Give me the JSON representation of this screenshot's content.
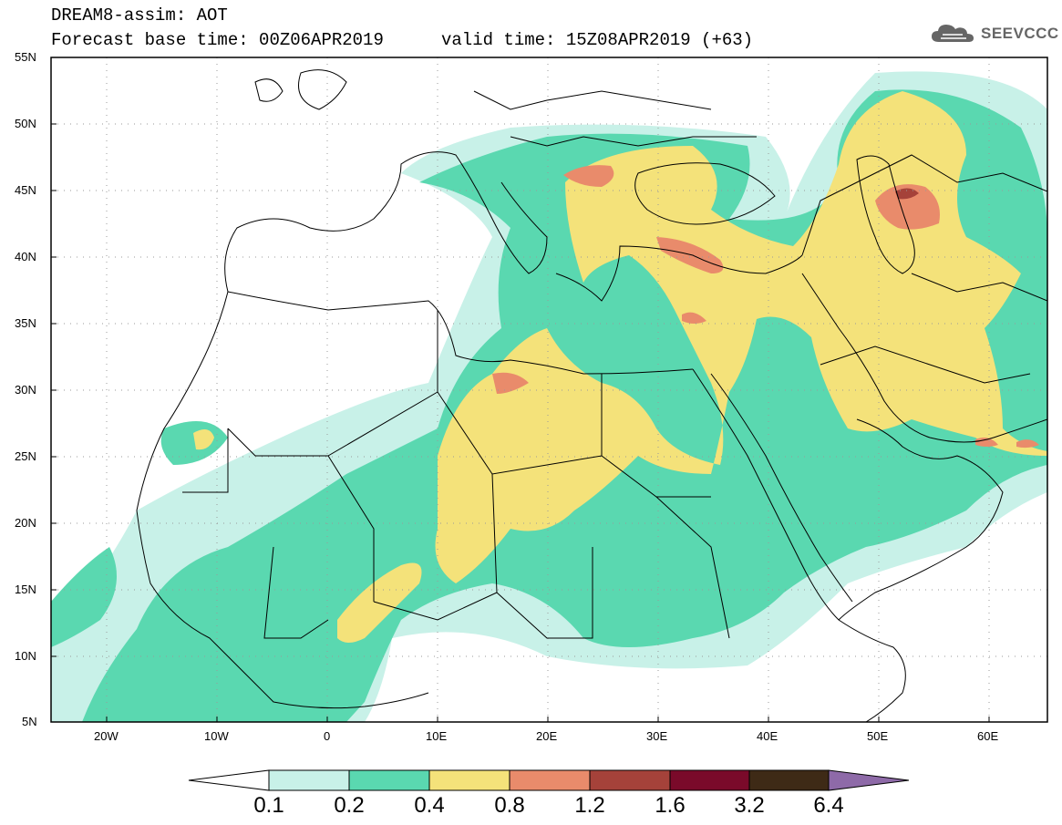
{
  "title": {
    "line1": "DREAM8-assim: AOT",
    "line2": "Forecast base time: 00Z06APR2019",
    "valid": "valid time: 15Z08APR2019 (+63)"
  },
  "logo": {
    "text": "SEEVCCC",
    "icon": "cloud-icon"
  },
  "axes": {
    "lat_labels": [
      "55N",
      "50N",
      "45N",
      "40N",
      "35N",
      "30N",
      "25N",
      "20N",
      "15N",
      "10N",
      "5N"
    ],
    "lon_labels": [
      "20W",
      "10W",
      "0",
      "10E",
      "20E",
      "30E",
      "40E",
      "50E",
      "60E"
    ],
    "lat_range": [
      5,
      55
    ],
    "lon_range": [
      -25,
      65
    ]
  },
  "colorbar": {
    "levels": [
      "0.1",
      "0.2",
      "0.4",
      "0.8",
      "1.2",
      "1.6",
      "3.2",
      "6.4"
    ],
    "colors": [
      "#ffffff",
      "#c8f1e8",
      "#5ad8b0",
      "#f4e27a",
      "#e98b6b",
      "#a5423a",
      "#7a0a2a",
      "#3e2a16",
      "#8e6aa8"
    ]
  }
}
